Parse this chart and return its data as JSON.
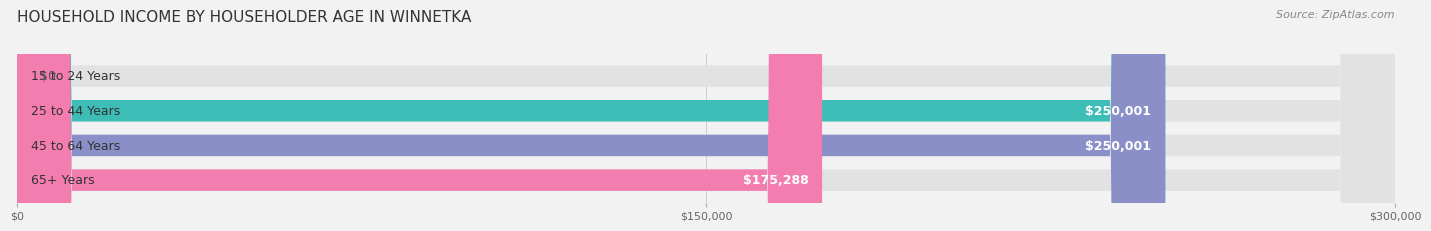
{
  "title": "HOUSEHOLD INCOME BY HOUSEHOLDER AGE IN WINNETKA",
  "source": "Source: ZipAtlas.com",
  "categories": [
    "15 to 24 Years",
    "25 to 44 Years",
    "45 to 64 Years",
    "65+ Years"
  ],
  "values": [
    0,
    250001,
    250001,
    175288
  ],
  "bar_colors": [
    "#c9a8d4",
    "#3dbdb5",
    "#8b8fc8",
    "#f47db0"
  ],
  "value_labels": [
    "$0",
    "$250,001",
    "$250,001",
    "$175,288"
  ],
  "xlim": [
    0,
    300000
  ],
  "xticks": [
    0,
    150000,
    300000
  ],
  "xtick_labels": [
    "$0",
    "$150,000",
    "$300,000"
  ],
  "background_color": "#f2f2f2",
  "bar_background": "#e2e2e2",
  "title_fontsize": 11,
  "source_fontsize": 8,
  "label_fontsize": 9,
  "value_fontsize": 9
}
